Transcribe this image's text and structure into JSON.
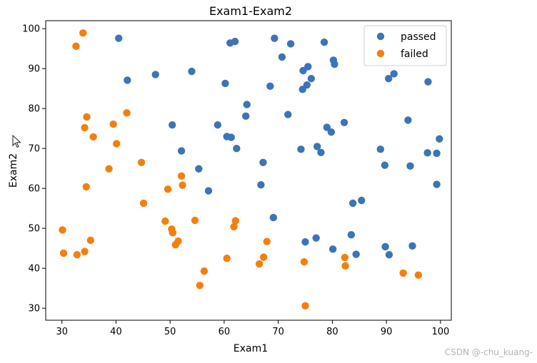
{
  "chart_data": {
    "type": "scatter",
    "title": "Exam1-Exam2",
    "xlabel": "Exam1",
    "ylabel": "Exam2",
    "xlim": [
      27,
      102
    ],
    "ylim": [
      27,
      102
    ],
    "xticks": [
      30,
      40,
      50,
      60,
      70,
      80,
      90,
      100
    ],
    "yticks": [
      30,
      40,
      50,
      60,
      70,
      80,
      90,
      100
    ],
    "legend_position": "top-right",
    "series": [
      {
        "name": "passed",
        "color": "#3b74b8",
        "points": [
          [
            40.5,
            97.6
          ],
          [
            42.1,
            87.1
          ],
          [
            47.3,
            88.5
          ],
          [
            50.4,
            75.9
          ],
          [
            52.1,
            69.4
          ],
          [
            54.0,
            89.3
          ],
          [
            55.3,
            64.9
          ],
          [
            57.1,
            59.4
          ],
          [
            58.8,
            75.9
          ],
          [
            60.2,
            86.3
          ],
          [
            60.5,
            73.0
          ],
          [
            61.1,
            96.4
          ],
          [
            61.3,
            72.8
          ],
          [
            62.0,
            96.8
          ],
          [
            62.3,
            70.0
          ],
          [
            64.0,
            78.1
          ],
          [
            64.2,
            81.0
          ],
          [
            66.8,
            60.9
          ],
          [
            67.2,
            66.5
          ],
          [
            68.5,
            85.6
          ],
          [
            69.1,
            52.7
          ],
          [
            69.3,
            97.6
          ],
          [
            70.7,
            92.9
          ],
          [
            71.8,
            78.5
          ],
          [
            72.3,
            96.2
          ],
          [
            74.2,
            69.8
          ],
          [
            74.5,
            84.8
          ],
          [
            74.6,
            89.5
          ],
          [
            75.0,
            46.6
          ],
          [
            75.3,
            85.9
          ],
          [
            75.5,
            90.5
          ],
          [
            76.1,
            87.5
          ],
          [
            77.0,
            47.6
          ],
          [
            77.2,
            70.5
          ],
          [
            77.9,
            69.0
          ],
          [
            78.5,
            96.6
          ],
          [
            79.0,
            75.3
          ],
          [
            79.8,
            74.1
          ],
          [
            80.1,
            44.8
          ],
          [
            80.2,
            92.1
          ],
          [
            80.4,
            91.1
          ],
          [
            82.2,
            76.5
          ],
          [
            83.5,
            48.4
          ],
          [
            83.8,
            56.3
          ],
          [
            84.4,
            43.5
          ],
          [
            85.4,
            57.0
          ],
          [
            88.9,
            69.8
          ],
          [
            89.7,
            65.8
          ],
          [
            89.8,
            45.4
          ],
          [
            90.4,
            87.5
          ],
          [
            90.5,
            43.4
          ],
          [
            91.4,
            88.7
          ],
          [
            94.0,
            77.1
          ],
          [
            94.4,
            65.6
          ],
          [
            94.8,
            45.6
          ],
          [
            97.6,
            68.9
          ],
          [
            97.7,
            86.7
          ],
          [
            99.3,
            68.8
          ],
          [
            99.3,
            61.0
          ],
          [
            99.8,
            72.4
          ]
        ]
      },
      {
        "name": "failed",
        "color": "#f57f0e",
        "points": [
          [
            30.1,
            49.6
          ],
          [
            30.3,
            43.8
          ],
          [
            32.6,
            95.6
          ],
          [
            32.8,
            43.4
          ],
          [
            33.9,
            98.9
          ],
          [
            34.2,
            44.2
          ],
          [
            34.2,
            75.2
          ],
          [
            34.5,
            60.4
          ],
          [
            34.6,
            77.9
          ],
          [
            35.3,
            47.0
          ],
          [
            35.8,
            72.9
          ],
          [
            38.7,
            64.9
          ],
          [
            39.5,
            76.1
          ],
          [
            40.1,
            71.2
          ],
          [
            42.0,
            78.9
          ],
          [
            44.7,
            66.5
          ],
          [
            45.1,
            56.3
          ],
          [
            49.1,
            51.8
          ],
          [
            49.6,
            59.8
          ],
          [
            50.3,
            49.8
          ],
          [
            50.5,
            48.9
          ],
          [
            51.0,
            45.9
          ],
          [
            51.5,
            46.8
          ],
          [
            52.1,
            63.1
          ],
          [
            52.3,
            60.8
          ],
          [
            54.6,
            52.0
          ],
          [
            55.5,
            35.7
          ],
          [
            56.3,
            39.3
          ],
          [
            60.5,
            42.5
          ],
          [
            61.8,
            50.4
          ],
          [
            62.1,
            51.9
          ],
          [
            66.5,
            41.1
          ],
          [
            67.3,
            42.8
          ],
          [
            67.9,
            46.7
          ],
          [
            74.8,
            41.6
          ],
          [
            75.0,
            30.6
          ],
          [
            82.3,
            42.7
          ],
          [
            82.4,
            40.6
          ],
          [
            93.1,
            38.8
          ],
          [
            95.9,
            38.3
          ]
        ]
      }
    ]
  },
  "watermark": "CSDN @-chu_kuang-"
}
